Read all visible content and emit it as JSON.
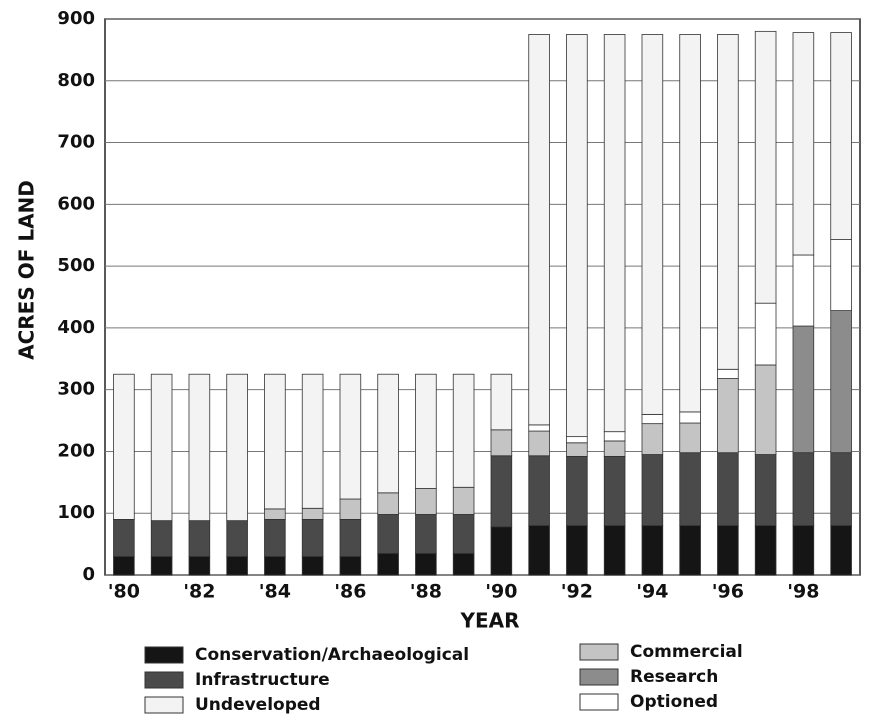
{
  "chart_data": {
    "type": "stacked_bar",
    "xlabel": "YEAR",
    "ylabel": "ACRES OF LAND",
    "categories": [
      "'80",
      null,
      "'82",
      null,
      "'84",
      null,
      "'86",
      null,
      "'88",
      null,
      "'90",
      null,
      "'92",
      null,
      "'94",
      null,
      "'96",
      null,
      "'98",
      null
    ],
    "ylim": [
      0,
      900
    ],
    "yticks": [
      0,
      100,
      200,
      300,
      400,
      500,
      600,
      700,
      800,
      900
    ],
    "grid": true,
    "series": [
      {
        "name": "Conservation/Archaeological",
        "color": "#151515",
        "values": [
          30,
          30,
          30,
          30,
          30,
          30,
          30,
          35,
          35,
          35,
          78,
          80,
          80,
          80,
          80,
          80,
          80,
          80,
          80,
          80
        ]
      },
      {
        "name": "Infrastructure",
        "color": "#4a4a4a",
        "values": [
          60,
          58,
          58,
          58,
          60,
          60,
          60,
          63,
          63,
          63,
          115,
          113,
          112,
          112,
          115,
          118,
          118,
          115,
          118,
          118
        ]
      },
      {
        "name": "Commercial",
        "color": "#c4c4c4",
        "values": [
          0,
          0,
          0,
          0,
          17,
          18,
          33,
          35,
          42,
          44,
          42,
          40,
          22,
          25,
          50,
          48,
          120,
          145,
          0,
          0
        ]
      },
      {
        "name": "Research",
        "color": "#8c8c8c",
        "values": [
          0,
          0,
          0,
          0,
          0,
          0,
          0,
          0,
          0,
          0,
          0,
          0,
          0,
          0,
          0,
          0,
          0,
          0,
          205,
          230
        ]
      },
      {
        "name": "Optioned",
        "color": "#ffffff",
        "values": [
          0,
          0,
          0,
          0,
          0,
          0,
          0,
          0,
          0,
          0,
          0,
          10,
          10,
          15,
          15,
          18,
          15,
          100,
          115,
          115
        ]
      },
      {
        "name": "Undeveloped",
        "color": "#f3f3f3",
        "values": [
          235,
          237,
          237,
          237,
          218,
          217,
          202,
          192,
          185,
          183,
          90,
          632,
          651,
          643,
          615,
          611,
          542,
          440,
          360,
          335
        ]
      }
    ]
  }
}
